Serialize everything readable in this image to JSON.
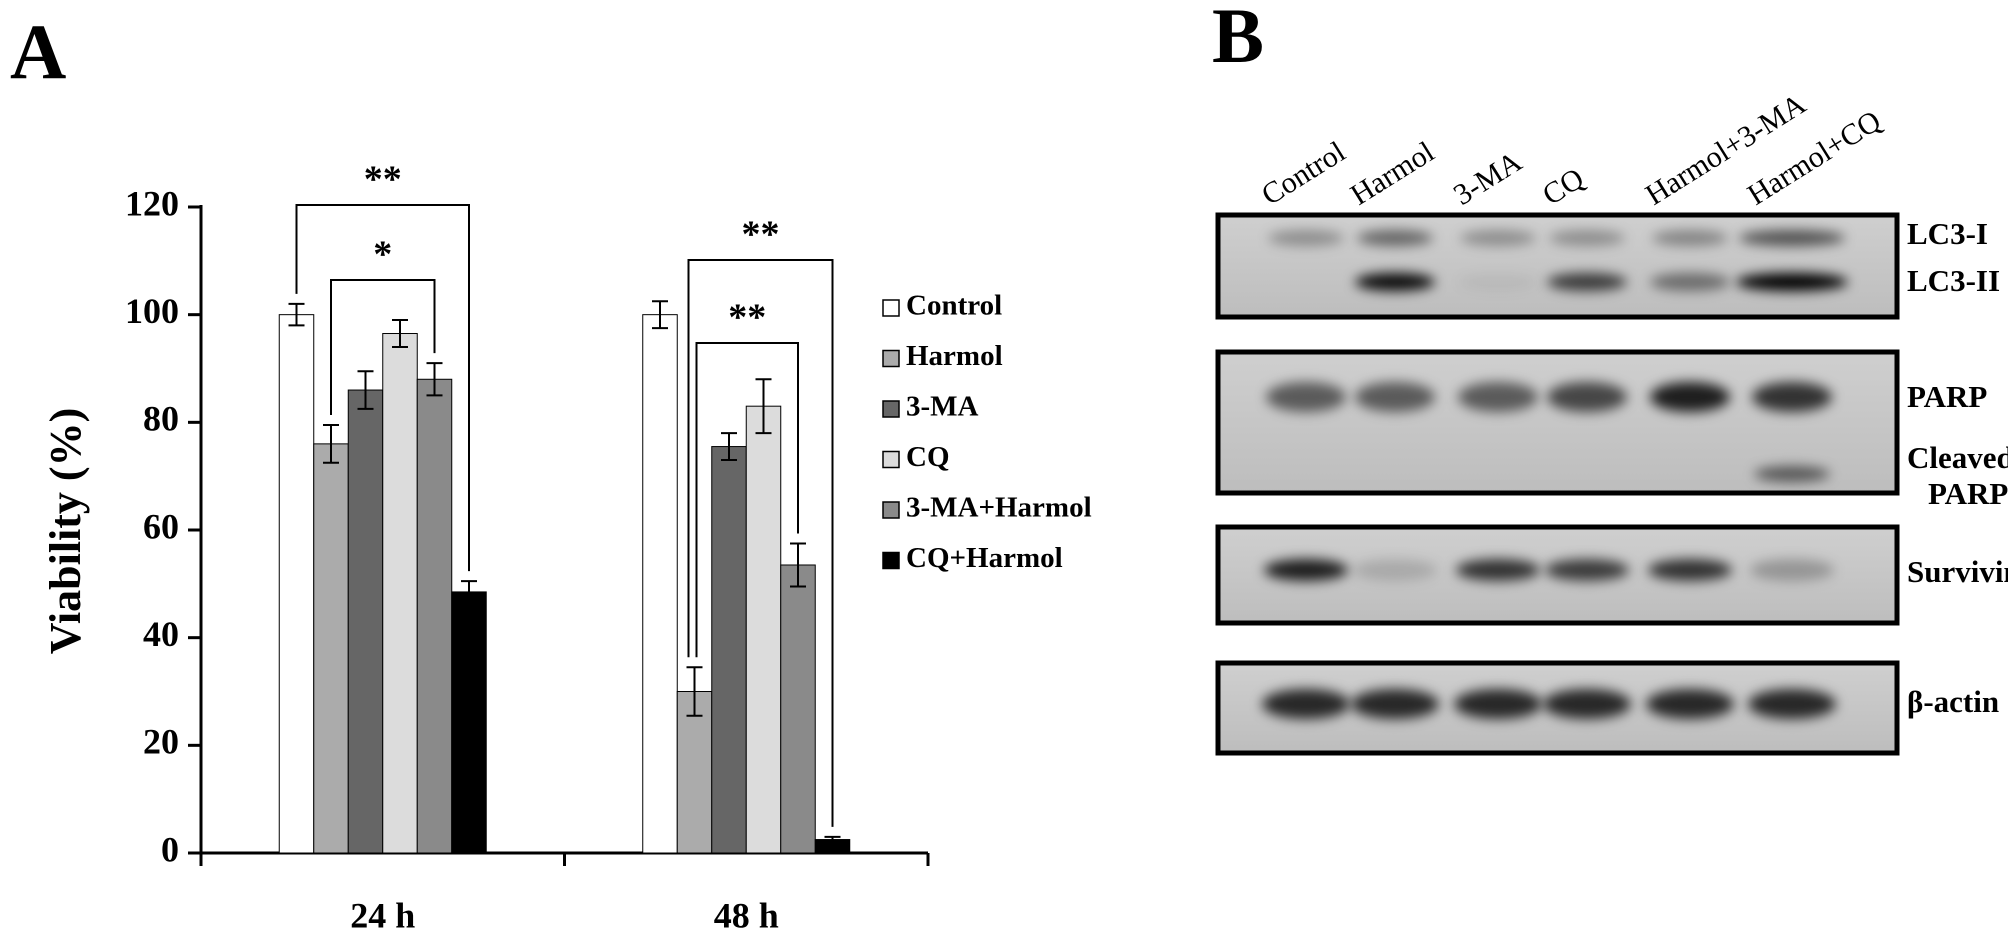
{
  "panel_labels": [
    "A",
    "B"
  ],
  "chart_data": {
    "type": "bar",
    "y_label": "Viability (%)",
    "categories": [
      "24 h",
      "48 h"
    ],
    "series": [
      {
        "name": "Control",
        "color": "#ffffff",
        "values": [
          100,
          100
        ],
        "errors": [
          2,
          2.5
        ]
      },
      {
        "name": "Harmol",
        "color": "#ababab",
        "values": [
          76,
          30
        ],
        "errors": [
          3.5,
          4.5
        ]
      },
      {
        "name": "3-MA",
        "color": "#666666",
        "values": [
          86,
          75.5
        ],
        "errors": [
          3.5,
          2.5
        ]
      },
      {
        "name": "CQ",
        "color": "#dcdcdc",
        "values": [
          96.5,
          83
        ],
        "errors": [
          2.5,
          5
        ]
      },
      {
        "name": "3-MA+Harmol",
        "color": "#8a8a8a",
        "values": [
          88,
          53.5
        ],
        "errors": [
          3,
          4
        ]
      },
      {
        "name": "CQ+Harmol",
        "color": "#000000",
        "values": [
          48.5,
          2.5
        ],
        "errors": [
          2,
          0.5
        ]
      }
    ],
    "ylim": [
      0,
      120
    ],
    "yticks": [
      0,
      20,
      40,
      60,
      80,
      100,
      120
    ],
    "grid": false,
    "annotations": [
      "**",
      "*",
      "**",
      "**"
    ]
  },
  "blot": {
    "lanes": [
      "Control",
      "Harmol",
      "3-MA",
      "CQ",
      "Harmol+3-MA",
      "Harmol+CQ"
    ],
    "bands": [
      "LC3-I",
      "LC3-II",
      "PARP",
      "Cleaved",
      "PARP",
      "Survivin",
      "β-actin"
    ]
  }
}
